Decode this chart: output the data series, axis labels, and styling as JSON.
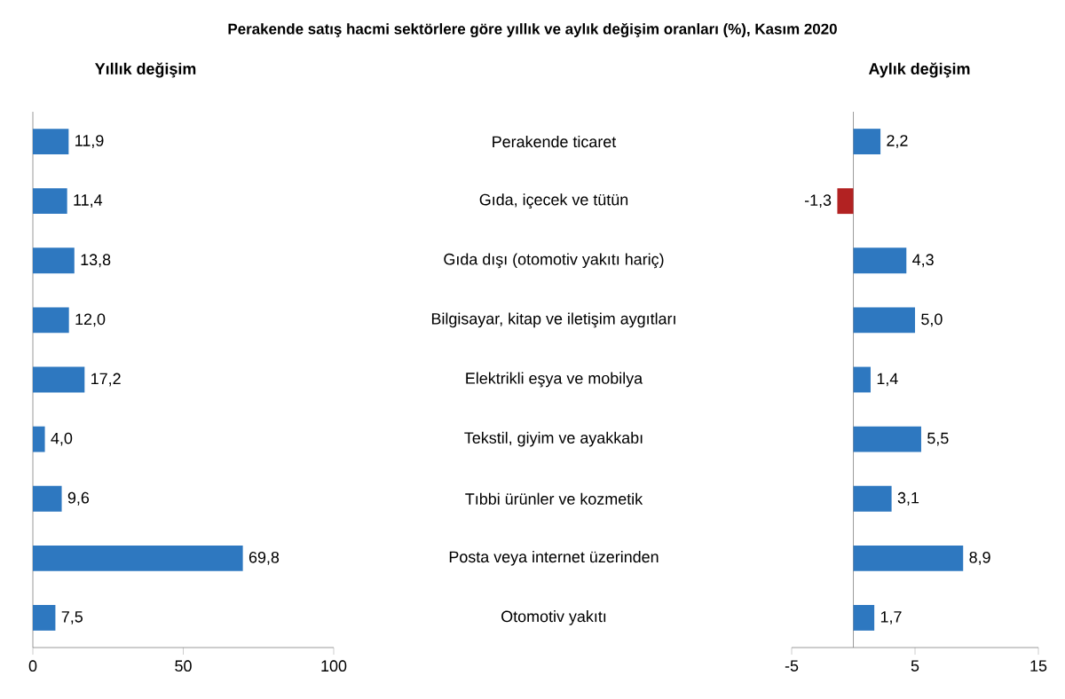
{
  "chart_data": [
    {
      "type": "bar",
      "orientation": "horizontal",
      "title": "Perakende satış hacmi sektörlere göre yıllık ve aylık değişim oranları (%), Kasım 2020",
      "subtitle": "Yıllık değişim",
      "categories": [
        "Perakende ticaret",
        "Gıda, içecek ve tütün",
        "Gıda dışı (otomotiv yakıtı hariç)",
        "Bilgisayar, kitap ve iletişim aygıtları",
        "Elektrikli eşya ve mobilya",
        "Tekstil, giyim ve ayakkabı",
        "Tıbbi ürünler ve kozmetik",
        "Posta veya internet üzerinden",
        "Otomotiv yakıtı"
      ],
      "values": [
        11.9,
        11.4,
        13.8,
        12.0,
        17.2,
        4.0,
        9.6,
        69.8,
        7.5
      ],
      "value_labels": [
        "11,9",
        "11,4",
        "13,8",
        "12,0",
        "17,2",
        "4,0",
        "9,6",
        "69,8",
        "7,5"
      ],
      "color": "#2e78c0",
      "xlim": [
        0,
        100
      ],
      "xticks": [
        0,
        50,
        100
      ]
    },
    {
      "type": "bar",
      "orientation": "horizontal",
      "subtitle": "Aylık değişim",
      "categories": [
        null,
        null,
        null,
        null,
        null,
        null,
        null,
        null,
        null
      ],
      "values": [
        2.2,
        -1.3,
        4.3,
        5.0,
        1.4,
        5.5,
        3.1,
        8.9,
        1.7
      ],
      "value_labels": [
        "2,2",
        "-1,3",
        "4,3",
        "5,0",
        "1,4",
        "5,5",
        "3,1",
        "8,9",
        "1,7"
      ],
      "colors": [
        "#2e78c0",
        "#b22222",
        "#2e78c0",
        "#2e78c0",
        "#2e78c0",
        "#2e78c0",
        "#2e78c0",
        "#2e78c0",
        "#2e78c0"
      ],
      "xlim": [
        -5,
        15
      ],
      "xticks": [
        -5,
        5,
        15
      ]
    }
  ]
}
